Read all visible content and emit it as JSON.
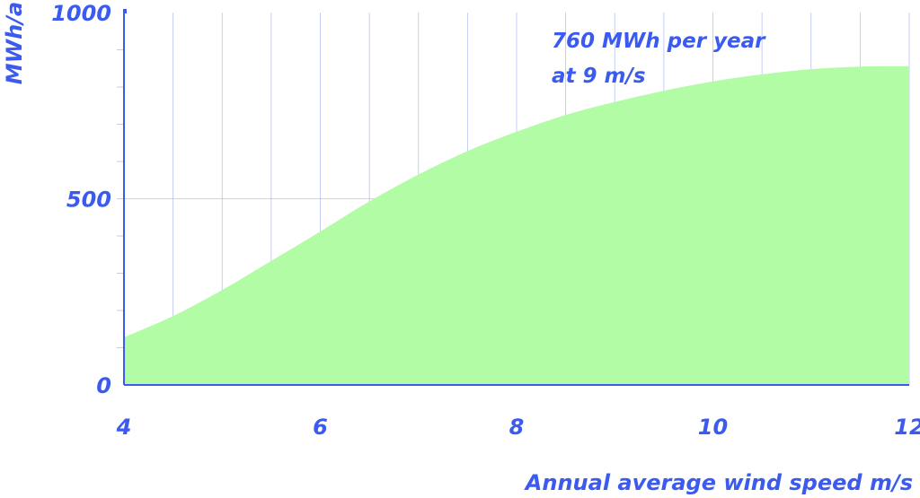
{
  "chart_data": {
    "type": "area",
    "x": [
      4,
      4.5,
      5,
      5.5,
      6,
      6.5,
      7,
      7.5,
      8,
      8.5,
      9,
      9.5,
      10,
      10.5,
      11,
      11.5,
      12
    ],
    "series": [
      {
        "values": [
          128,
          185,
          255,
          333,
          412,
          493,
          565,
          628,
          680,
          725,
          760,
          790,
          815,
          834,
          848,
          855,
          856
        ]
      }
    ],
    "xlabel": "Annual average wind speed m/s",
    "ylabel": "MWh/a",
    "xlim": [
      4,
      12
    ],
    "ylim": [
      0,
      1000
    ],
    "xticks": [
      {
        "value": 4,
        "label": "4"
      },
      {
        "value": 6,
        "label": "6"
      },
      {
        "value": 8,
        "label": "8"
      },
      {
        "value": 10,
        "label": "10"
      },
      {
        "value": 12,
        "label": "12"
      }
    ],
    "yticks": [
      {
        "value": 0,
        "label": "0"
      },
      {
        "value": 500,
        "label": "500"
      },
      {
        "value": 1000,
        "label": "1000"
      }
    ],
    "annotation": {
      "line1": "760 MWh per year",
      "line2": "at 9 m/s"
    },
    "grid": true,
    "colors": {
      "fill": "#b3fca6",
      "text": "#3b5bf0",
      "grid": "#9aa8ee",
      "axis": "#3b5bf0"
    }
  }
}
